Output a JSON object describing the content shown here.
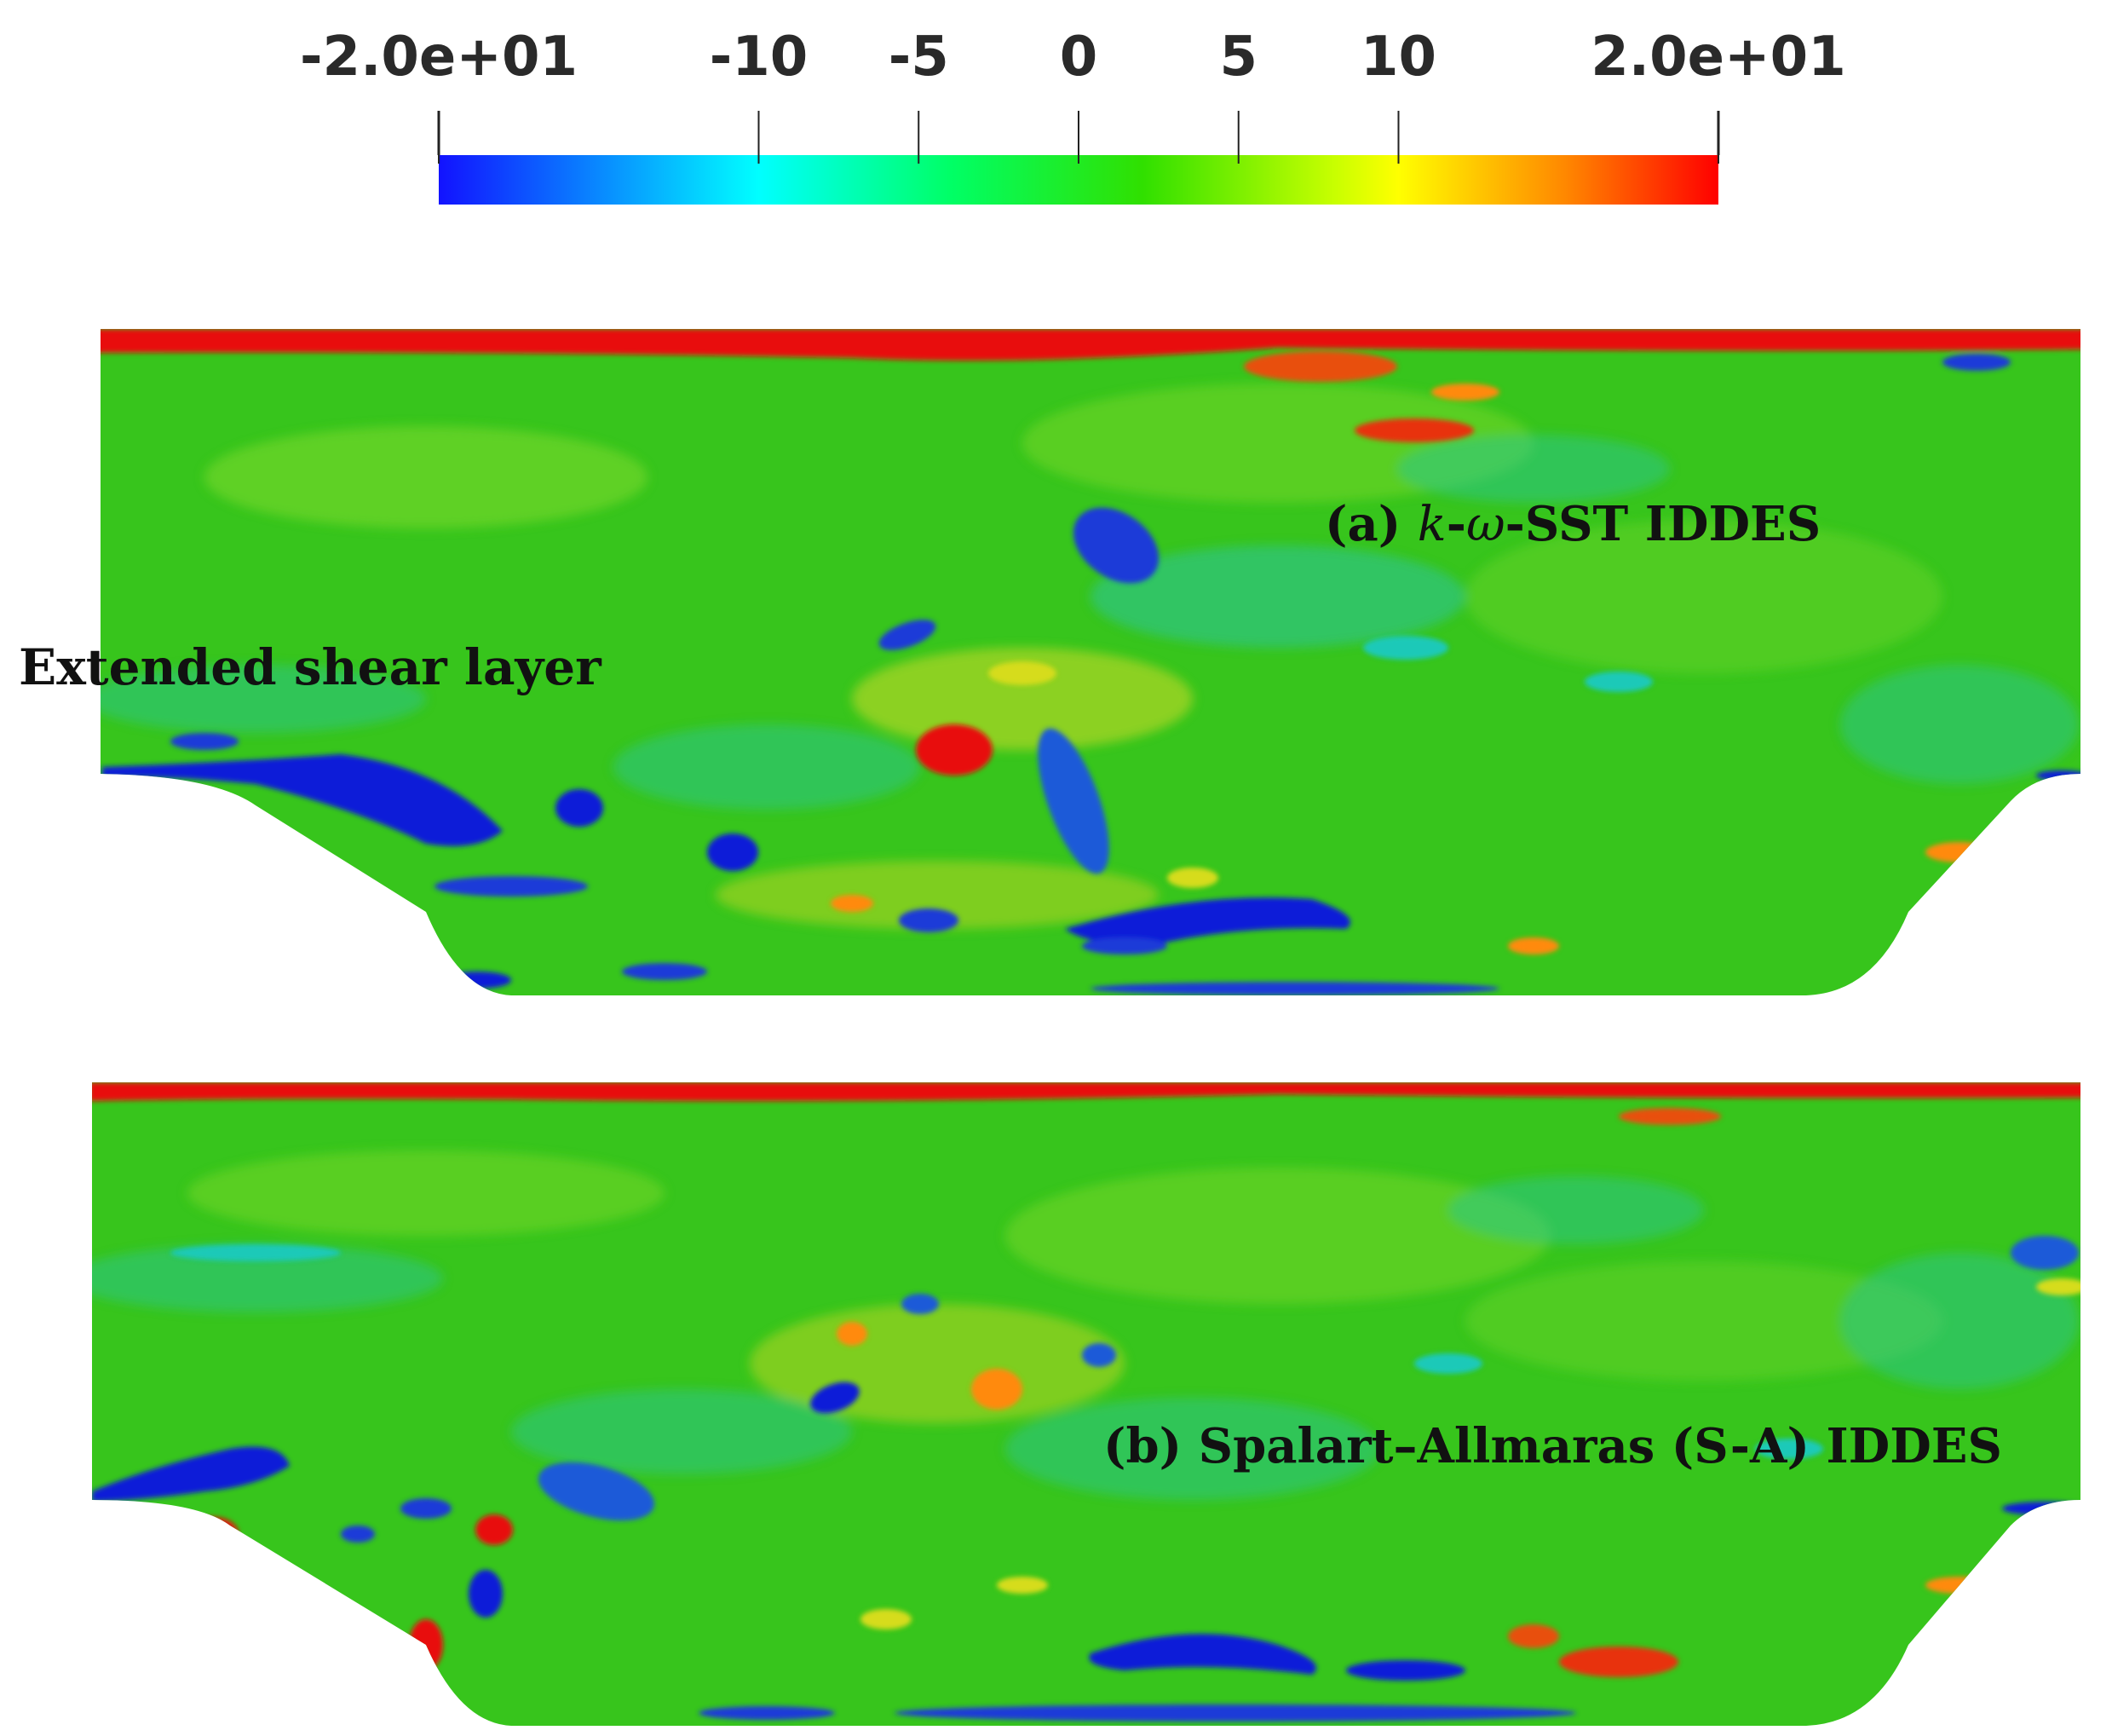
{
  "colorbar": {
    "ticks": [
      {
        "value": -20,
        "label": "-2.0e+01"
      },
      {
        "value": -10,
        "label": "-10"
      },
      {
        "value": -5,
        "label": "-5"
      },
      {
        "value": 0,
        "label": "0"
      },
      {
        "value": 5,
        "label": "5"
      },
      {
        "value": 10,
        "label": "10"
      },
      {
        "value": 20,
        "label": "2.0e+01"
      }
    ],
    "range": [
      -20,
      20
    ],
    "colormap": [
      "#1a1aff",
      "#00ffff",
      "#00ff66",
      "#33dd00",
      "#ccff00",
      "#ffff00",
      "#ff9900",
      "#ff0000"
    ]
  },
  "panels": {
    "a": {
      "label_prefix": "(a) ",
      "label_italic": "k",
      "label_dash": "-",
      "label_omega": "ω",
      "label_suffix": "-SST IDDES"
    },
    "b": {
      "label": "(b) Spalart–Allmaras (S-A) IDDES"
    }
  },
  "annotation": {
    "text": "Extended shear layer"
  },
  "colors": {
    "field_base": "#37c51c",
    "field_light": "#6fd52a",
    "negative": "#0a1ad8",
    "cyan": "#1ac9b8",
    "yellow": "#d6dc1e",
    "orange": "#ff8a10",
    "positive": "#e81010"
  }
}
